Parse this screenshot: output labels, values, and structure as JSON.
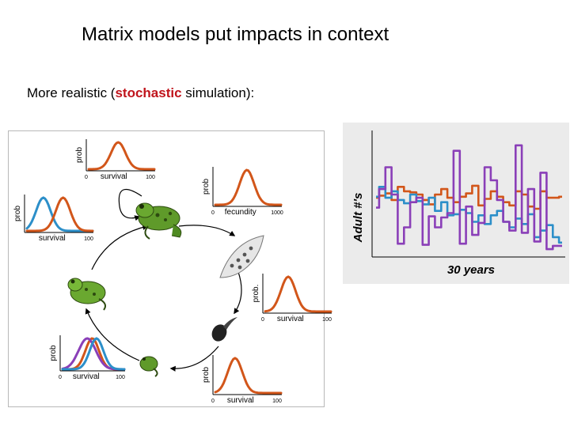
{
  "slide": {
    "title": "Matrix models put impacts in context",
    "subtitle": {
      "prefix": "More realistic (",
      "highlight": "stochastic",
      "suffix": " simulation):"
    }
  },
  "colors": {
    "orange": "#d2561a",
    "blue": "#2c8fc9",
    "purple": "#8a3fb8",
    "highlight_red": "#c0141c",
    "panel_grey": "#ebebeb"
  },
  "lifecycle": {
    "stages": [
      {
        "name": "adult-frog",
        "icon": "frog-adult-icon"
      },
      {
        "name": "eggs",
        "icon": "egg-mass-icon"
      },
      {
        "name": "tadpole",
        "icon": "tadpole-icon"
      },
      {
        "name": "metamorph",
        "icon": "small-frog-icon"
      },
      {
        "name": "juvenile-frog",
        "icon": "frog-juvenile-icon"
      }
    ],
    "mini_plots": [
      {
        "id": "adult-survival",
        "ylabel": "prob",
        "xlabel": "survival",
        "xmin": "0",
        "xmax": "100",
        "curves": [
          "orange"
        ]
      },
      {
        "id": "fecundity",
        "ylabel": "prob",
        "xlabel": "fecundity",
        "xmin": "0",
        "xmax": "1000",
        "curves": [
          "orange"
        ]
      },
      {
        "id": "egg-survival",
        "ylabel": "prob.",
        "xlabel": "survival",
        "xmin": "0",
        "xmax": "100",
        "curves": [
          "orange"
        ]
      },
      {
        "id": "tadpole-survival",
        "ylabel": "prob",
        "xlabel": "survival",
        "xmin": "0",
        "xmax": "100",
        "curves": [
          "orange"
        ]
      },
      {
        "id": "metamorph-survival",
        "ylabel": "prob",
        "xlabel": "survival",
        "xmin": "0",
        "xmax": "100",
        "curves": [
          "orange",
          "purple",
          "blue"
        ]
      },
      {
        "id": "juvenile-survival",
        "ylabel": "prob",
        "xlabel": "survival",
        "xmin": "",
        "xmax": "100",
        "curves": [
          "blue",
          "orange"
        ]
      }
    ]
  },
  "chart_data": {
    "type": "line",
    "title": "",
    "ylabel": "Adult #'s",
    "xlabel": "30 years",
    "x": [
      0,
      1,
      2,
      3,
      4,
      5,
      6,
      7,
      8,
      9,
      10,
      11,
      12,
      13,
      14,
      15,
      16,
      17,
      18,
      19,
      20,
      21,
      22,
      23,
      24,
      25,
      26,
      27,
      28,
      29,
      30
    ],
    "series": [
      {
        "color": "orange",
        "values": [
          52,
          54,
          56,
          50,
          62,
          58,
          57,
          55,
          50,
          46,
          55,
          60,
          52,
          48,
          53,
          56,
          63,
          45,
          51,
          58,
          53,
          48,
          45,
          58,
          55,
          44,
          42,
          58,
          52,
          52,
          53
        ]
      },
      {
        "color": "blue",
        "values": [
          53,
          62,
          52,
          58,
          50,
          47,
          55,
          49,
          46,
          52,
          40,
          48,
          36,
          37,
          41,
          38,
          30,
          36,
          28,
          36,
          40,
          30,
          25,
          33,
          28,
          37,
          16,
          22,
          27,
          16,
          11
        ]
      },
      {
        "color": "purple",
        "values": [
          43,
          60,
          80,
          55,
          10,
          25,
          48,
          52,
          9,
          35,
          25,
          34,
          38,
          95,
          10,
          44,
          18,
          29,
          80,
          68,
          50,
          30,
          22,
          100,
          20,
          60,
          12,
          75,
          5,
          8,
          8
        ]
      }
    ],
    "ylim": [
      0,
      110
    ],
    "xlim": [
      0,
      30
    ],
    "grid": false,
    "legend": "none",
    "tick_labels": "none"
  }
}
